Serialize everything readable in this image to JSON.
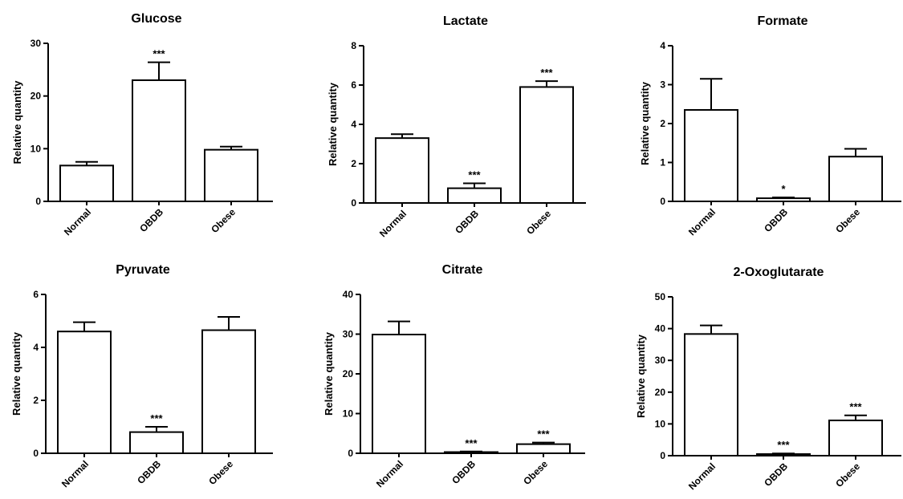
{
  "chart_data": [
    {
      "type": "bar",
      "title": "Glucose",
      "ylabel": "Relative quantity",
      "categories": [
        "Normal",
        "OBDB",
        "Obese"
      ],
      "values": [
        6.8,
        23.0,
        9.8
      ],
      "errors": [
        0.7,
        3.4,
        0.6
      ],
      "significance": [
        "",
        "***",
        ""
      ],
      "ylim": [
        0,
        30
      ],
      "yticks": [
        0,
        10,
        20,
        30
      ]
    },
    {
      "type": "bar",
      "title": "Lactate",
      "ylabel": "Relative quantity",
      "categories": [
        "Normal",
        "OBDB",
        "Obese"
      ],
      "values": [
        3.3,
        0.75,
        5.9
      ],
      "errors": [
        0.2,
        0.25,
        0.3
      ],
      "significance": [
        "",
        "***",
        "***"
      ],
      "ylim": [
        0,
        8
      ],
      "yticks": [
        0,
        2,
        4,
        6,
        8
      ]
    },
    {
      "type": "bar",
      "title": "Formate",
      "ylabel": "Relative quantity",
      "categories": [
        "Normal",
        "OBDB",
        "Obese"
      ],
      "values": [
        2.35,
        0.08,
        1.15
      ],
      "errors": [
        0.8,
        0.02,
        0.2
      ],
      "significance": [
        "",
        "*",
        ""
      ],
      "ylim": [
        0,
        4
      ],
      "yticks": [
        0,
        1,
        2,
        3,
        4
      ]
    },
    {
      "type": "bar",
      "title": "Pyruvate",
      "ylabel": "Relative quantity",
      "categories": [
        "Normal",
        "OBDB",
        "Obese"
      ],
      "values": [
        4.6,
        0.8,
        4.65
      ],
      "errors": [
        0.35,
        0.2,
        0.5
      ],
      "significance": [
        "",
        "***",
        ""
      ],
      "ylim": [
        0,
        6
      ],
      "yticks": [
        0,
        2,
        4,
        6
      ]
    },
    {
      "type": "bar",
      "title": "Citrate",
      "ylabel": "Relative quantity",
      "categories": [
        "Normal",
        "OBDB",
        "Obese"
      ],
      "values": [
        29.9,
        0.3,
        2.3
      ],
      "errors": [
        3.3,
        0.15,
        0.4
      ],
      "significance": [
        "",
        "***",
        "***"
      ],
      "ylim": [
        0,
        40
      ],
      "yticks": [
        0,
        10,
        20,
        30,
        40
      ]
    },
    {
      "type": "bar",
      "title": "2-Oxoglutarate",
      "ylabel": "Relative quantity",
      "categories": [
        "Normal",
        "OBDB",
        "Obese"
      ],
      "values": [
        38.3,
        0.5,
        11.1
      ],
      "errors": [
        2.7,
        0.2,
        1.6
      ],
      "significance": [
        "",
        "***",
        "***"
      ],
      "ylim": [
        0,
        50
      ],
      "yticks": [
        0,
        10,
        20,
        30,
        40,
        50
      ]
    }
  ]
}
